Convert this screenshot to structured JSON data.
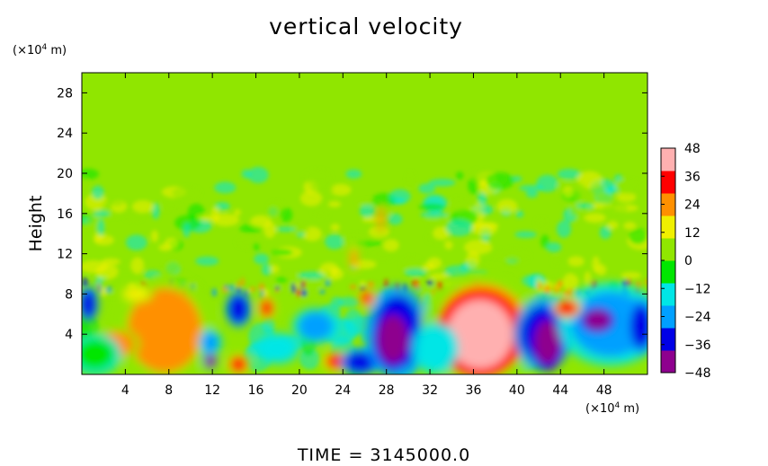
{
  "chart_data": {
    "type": "heatmap",
    "title": "vertical velocity",
    "ylabel": "Height",
    "xlabel": "",
    "x_unit_prefix": "(×10",
    "x_unit_exp": "4",
    "x_unit_suffix": " m)",
    "y_unit_prefix": "(×10",
    "y_unit_exp": "4",
    "y_unit_suffix": " m)",
    "xlim": [
      0,
      52
    ],
    "ylim": [
      0,
      30
    ],
    "x_ticks": [
      4,
      8,
      12,
      16,
      20,
      24,
      28,
      32,
      36,
      40,
      44,
      48
    ],
    "y_ticks": [
      4,
      8,
      12,
      16,
      20,
      24,
      28
    ],
    "x_tick_labels": [
      "4",
      "8",
      "12",
      "16",
      "20",
      "24",
      "28",
      "32",
      "36",
      "40",
      "44",
      "48"
    ],
    "y_tick_labels": [
      "4",
      "8",
      "12",
      "16",
      "20",
      "24",
      "28"
    ],
    "colorbar": {
      "min": -48,
      "max": 48,
      "tick_values": [
        48,
        36,
        24,
        12,
        0,
        -12,
        -24,
        -36,
        -48
      ],
      "tick_labels": [
        "48",
        "36",
        "24",
        "12",
        "0",
        "−12",
        "−24",
        "−36",
        "−48"
      ]
    },
    "colormap": [
      "#8e008e",
      "#0000e6",
      "#00a0ff",
      "#00e6e6",
      "#00e600",
      "#90e600",
      "#f0f000",
      "#ff9000",
      "#ff0000",
      "#ffb0b0"
    ],
    "background_value": 2,
    "regions": [
      {
        "x": 8.0,
        "y": 4.2,
        "rx": 2.2,
        "ry": 3.0,
        "v": 48
      },
      {
        "x": 7.6,
        "y": 4.4,
        "rx": 3.4,
        "ry": 4.2,
        "v": 20
      },
      {
        "x": 3.2,
        "y": 3.0,
        "rx": 1.6,
        "ry": 1.3,
        "v": 26
      },
      {
        "x": 0.6,
        "y": 7.0,
        "rx": 0.7,
        "ry": 1.4,
        "v": -38
      },
      {
        "x": 1.2,
        "y": 2.0,
        "rx": 1.8,
        "ry": 1.6,
        "v": -6
      },
      {
        "x": 14.4,
        "y": 6.5,
        "rx": 0.9,
        "ry": 1.4,
        "v": -38
      },
      {
        "x": 17.0,
        "y": 6.6,
        "rx": 0.6,
        "ry": 0.9,
        "v": 30
      },
      {
        "x": 14.4,
        "y": 1.0,
        "rx": 0.8,
        "ry": 0.8,
        "v": 36
      },
      {
        "x": 11.8,
        "y": 1.5,
        "rx": 0.5,
        "ry": 0.8,
        "v": -42
      },
      {
        "x": 11.8,
        "y": 3.2,
        "rx": 0.8,
        "ry": 1.0,
        "v": -24
      },
      {
        "x": 21.5,
        "y": 4.8,
        "rx": 1.6,
        "ry": 1.4,
        "v": -24
      },
      {
        "x": 23.4,
        "y": 1.3,
        "rx": 1.0,
        "ry": 0.8,
        "v": 30
      },
      {
        "x": 25.6,
        "y": 1.2,
        "rx": 1.4,
        "ry": 1.0,
        "v": -36
      },
      {
        "x": 29.0,
        "y": 4.2,
        "rx": 2.2,
        "ry": 3.6,
        "v": -34
      },
      {
        "x": 28.6,
        "y": 3.5,
        "rx": 1.4,
        "ry": 2.4,
        "v": -48
      },
      {
        "x": 36.8,
        "y": 4.4,
        "rx": 4.2,
        "ry": 4.6,
        "v": 22
      },
      {
        "x": 36.6,
        "y": 4.0,
        "rx": 3.0,
        "ry": 3.4,
        "v": 48
      },
      {
        "x": 42.4,
        "y": 4.0,
        "rx": 2.0,
        "ry": 2.8,
        "v": -34
      },
      {
        "x": 42.8,
        "y": 3.2,
        "rx": 1.2,
        "ry": 2.2,
        "v": -48
      },
      {
        "x": 48.6,
        "y": 5.0,
        "rx": 3.6,
        "ry": 3.2,
        "v": -28
      },
      {
        "x": 47.4,
        "y": 5.4,
        "rx": 1.2,
        "ry": 1.0,
        "v": -44
      },
      {
        "x": 51.4,
        "y": 4.8,
        "rx": 1.0,
        "ry": 2.2,
        "v": -38
      },
      {
        "x": 44.6,
        "y": 6.6,
        "rx": 1.0,
        "ry": 0.8,
        "v": 30
      },
      {
        "x": 32.5,
        "y": 2.6,
        "rx": 1.6,
        "ry": 2.0,
        "v": -12
      },
      {
        "x": 27.5,
        "y": 15.5,
        "rx": 0.25,
        "ry": 1.4,
        "v": 26
      },
      {
        "x": 25.0,
        "y": 11.5,
        "rx": 0.3,
        "ry": 1.0,
        "v": 28
      },
      {
        "x": 26.2,
        "y": 7.6,
        "rx": 0.6,
        "ry": 0.7,
        "v": 34
      },
      {
        "x": 18.0,
        "y": 2.6,
        "rx": 1.5,
        "ry": 1.2,
        "v": -16
      },
      {
        "x": 5.0,
        "y": 8.0,
        "rx": 1.2,
        "ry": 0.7,
        "v": 18
      }
    ],
    "time_label": "TIME  =  3145000.0"
  }
}
